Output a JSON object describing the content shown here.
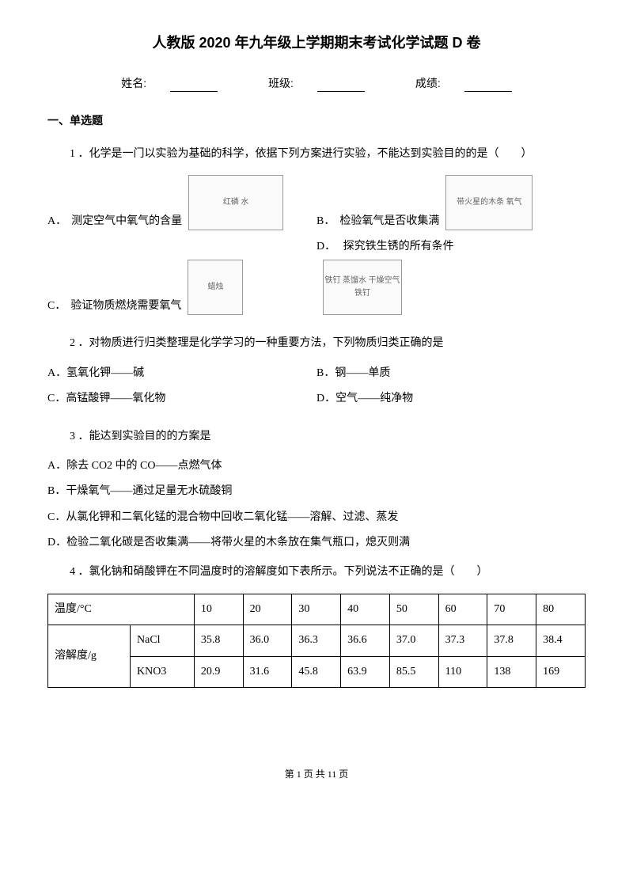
{
  "header": {
    "title": "人教版 2020 年九年级上学期期末考试化学试题 D 卷",
    "name_label": "姓名:",
    "class_label": "班级:",
    "score_label": "成绩:"
  },
  "section1": {
    "title": "一、单选题"
  },
  "q1": {
    "text": "1 ．化学是一门以实验为基础的科学，依据下列方案进行实验，不能达到实验目的的是（　　）",
    "a_label": "A．",
    "a_text": "测定空气中氧气的含量",
    "a_dia": "红磷 水",
    "b_label": "B．",
    "b_text": "检验氧气是否收集满",
    "b_dia": "带火星的木条 氧气",
    "c_label": "C．",
    "c_text": "验证物质燃烧需要氧气",
    "c_dia": "蜡烛",
    "d_label": "D．",
    "d_text": "探究铁生锈的所有条件",
    "d_dia": "铁钉 蒸馏水 干燥空气 铁钉"
  },
  "q2": {
    "text": "2 ．对物质进行归类整理是化学学习的一种重要方法，下列物质归类正确的是",
    "a": "A．氢氧化钾——碱",
    "b": "B．钢——单质",
    "c": "C．高锰酸钾——氧化物",
    "d": "D．空气——纯净物"
  },
  "q3": {
    "text": "3 ．能达到实验目的的方案是",
    "a": "A．除去 CO2 中的 CO——点燃气体",
    "b": "B．干燥氧气——通过足量无水硫酸铜",
    "c": "C．从氯化钾和二氧化锰的混合物中回收二氧化锰——溶解、过滤、蒸发",
    "d": "D．检验二氧化碳是否收集满——将带火星的木条放在集气瓶口，熄灭则满"
  },
  "q4": {
    "text": "4 ．氯化钠和硝酸钾在不同温度时的溶解度如下表所示。下列说法不正确的是（　　）"
  },
  "table": {
    "r1c1": "温度/°C",
    "r2c1": "溶解度/g",
    "nacl": "NaCl",
    "kno3": "KNO3",
    "temps": [
      "10",
      "20",
      "30",
      "40",
      "50",
      "60",
      "70",
      "80"
    ],
    "nacl_vals": [
      "35.8",
      "36.0",
      "36.3",
      "36.6",
      "37.0",
      "37.3",
      "37.8",
      "38.4"
    ],
    "kno3_vals": [
      "20.9",
      "31.6",
      "45.8",
      "63.9",
      "85.5",
      "110",
      "138",
      "169"
    ]
  },
  "footer": {
    "text": "第 1 页 共 11 页"
  }
}
